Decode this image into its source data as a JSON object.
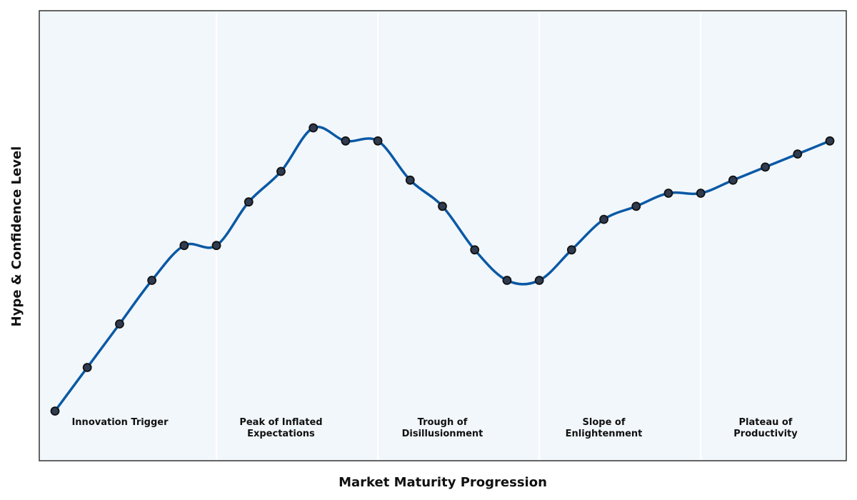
{
  "chart_data": {
    "type": "line",
    "xlabel": "Market Maturity Progression",
    "ylabel": "Hype & Confidence Level",
    "xlim": [
      0,
      24
    ],
    "ylim": [
      0,
      100
    ],
    "grid": false,
    "x": [
      0,
      1,
      2,
      3,
      4,
      5,
      6,
      7,
      8,
      9,
      10,
      11,
      12,
      13,
      14,
      15,
      16,
      17,
      18,
      19,
      20,
      21,
      22,
      23,
      24
    ],
    "series": [
      {
        "values": [
          25,
          35,
          45,
          55,
          63,
          63,
          73,
          80,
          90,
          87,
          87,
          78,
          72,
          62,
          55,
          55,
          62,
          69,
          72,
          75,
          75,
          78,
          81,
          84,
          87
        ]
      }
    ],
    "phases": [
      {
        "name": "Innovation Trigger",
        "lines": [
          "Innovation Trigger"
        ],
        "start": 0,
        "end": 5
      },
      {
        "name": "Peak of Inflated Expectations",
        "lines": [
          "Peak of Inflated",
          "Expectations"
        ],
        "start": 5,
        "end": 10
      },
      {
        "name": "Trough of Disillusionment",
        "lines": [
          "Trough of",
          "Disillusionment"
        ],
        "start": 10,
        "end": 15
      },
      {
        "name": "Slope of Enlightenment",
        "lines": [
          "Slope of",
          "Enlightenment"
        ],
        "start": 15,
        "end": 20
      },
      {
        "name": "Plateau of Productivity",
        "lines": [
          "Plateau of",
          "Productivity"
        ],
        "start": 20,
        "end": 24
      }
    ],
    "colors": {
      "line": "#0a59a5",
      "marker_fill": "#2f3b4f",
      "marker_edge": "#111111",
      "plot_background": "#f2f7fb",
      "phase_divider": "#ffffff",
      "frame": "#333333"
    }
  }
}
